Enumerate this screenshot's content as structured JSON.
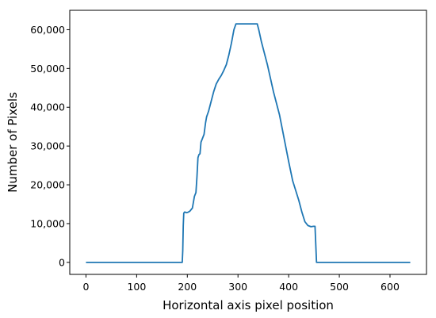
{
  "chart_data": {
    "type": "line",
    "xlabel": "Horizontal axis pixel position",
    "ylabel": "Number of Pixels",
    "xlim": [
      -32,
      672
    ],
    "ylim": [
      -3100,
      65000
    ],
    "x_ticks": [
      0,
      100,
      200,
      300,
      400,
      500,
      600
    ],
    "x_tick_labels": [
      "0",
      "100",
      "200",
      "300",
      "400",
      "500",
      "600"
    ],
    "y_ticks": [
      0,
      10000,
      20000,
      30000,
      40000,
      50000,
      60000
    ],
    "y_tick_labels": [
      "0",
      "10,000",
      "20,000",
      "30,000",
      "40,000",
      "50,000",
      "60,000"
    ],
    "grid": false,
    "line_color": "#1f77b4",
    "series": [
      {
        "x": [
          0,
          100,
          190,
          191,
          192,
          193,
          195,
          198,
          201,
          205,
          210,
          214,
          217,
          219,
          221,
          223,
          225,
          227,
          230,
          233,
          236,
          238,
          242,
          247,
          252,
          257,
          262,
          267,
          272,
          277,
          282,
          287,
          292,
          296,
          300,
          303,
          305,
          310,
          320,
          330,
          338,
          341,
          346,
          352,
          358,
          364,
          370,
          376,
          382,
          388,
          394,
          400,
          404,
          408,
          414,
          420,
          426,
          432,
          438,
          444,
          449,
          452,
          455,
          458,
          462,
          467,
          469,
          470,
          471,
          472,
          475,
          550,
          640
        ],
        "y": [
          0,
          0,
          0,
          3000,
          9500,
          12700,
          13000,
          12800,
          12900,
          13200,
          14000,
          17000,
          18000,
          22000,
          27000,
          27800,
          28000,
          31000,
          32000,
          33000,
          36000,
          37500,
          39000,
          41500,
          44000,
          46000,
          47200,
          48200,
          49500,
          51000,
          53500,
          56500,
          60000,
          61500,
          61500,
          61500,
          61500,
          61500,
          61500,
          61500,
          61500,
          60000,
          57000,
          54000,
          51000,
          47500,
          44000,
          41000,
          38000,
          34000,
          30000,
          26000,
          23500,
          21000,
          18500,
          16000,
          13000,
          10500,
          9500,
          9200,
          9300,
          9300,
          0,
          0,
          0,
          0,
          0,
          0,
          0,
          0,
          0,
          0,
          0
        ]
      }
    ]
  }
}
